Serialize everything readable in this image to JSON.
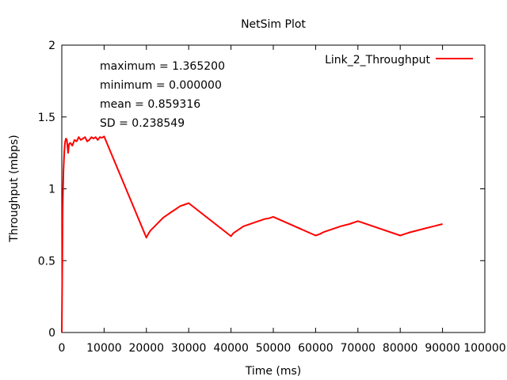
{
  "chart_data": {
    "type": "line",
    "title": "NetSim Plot",
    "xlabel": "Time (ms)",
    "ylabel": "Throughput (mbps)",
    "xlim": [
      0,
      100000
    ],
    "ylim": [
      0,
      2
    ],
    "x_ticks": [
      0,
      10000,
      20000,
      30000,
      40000,
      50000,
      60000,
      70000,
      80000,
      90000,
      100000
    ],
    "x_tick_labels": [
      "0",
      "10000",
      "20000",
      "30000",
      "40000",
      "50000",
      "60000",
      "70000",
      "80000",
      "90000",
      "100000"
    ],
    "y_ticks": [
      0,
      0.5,
      1,
      1.5,
      2
    ],
    "y_tick_labels": [
      "0",
      "0.5",
      "1",
      "1.5",
      "2"
    ],
    "grid": false,
    "legend_position": "top-right",
    "annotations": [
      "maximum = 1.365200",
      "minimum = 0.000000",
      "mean = 0.859316",
      "SD = 0.238549"
    ],
    "series": [
      {
        "name": "Link_2_Throughput",
        "color": "#ff0000",
        "x": [
          0,
          100,
          200,
          300,
          400,
          500,
          600,
          700,
          800,
          1000,
          1200,
          1500,
          1700,
          2000,
          2500,
          3000,
          3500,
          4000,
          4500,
          5000,
          5500,
          6000,
          6500,
          7000,
          7500,
          8000,
          8500,
          9000,
          9500,
          10000,
          20000,
          20500,
          21000,
          22000,
          23000,
          24000,
          25000,
          26000,
          27000,
          28000,
          29000,
          30000,
          40000,
          40500,
          41000,
          42000,
          43000,
          44000,
          45000,
          46000,
          47000,
          48000,
          49000,
          50000,
          60000,
          61000,
          62000,
          64000,
          66000,
          68000,
          70000,
          80000,
          81000,
          82000,
          84000,
          86000,
          88000,
          90000
        ],
        "values": [
          0.0,
          0.35,
          0.85,
          1.0,
          1.12,
          1.2,
          1.26,
          1.3,
          1.33,
          1.35,
          1.34,
          1.25,
          1.31,
          1.32,
          1.3,
          1.34,
          1.33,
          1.36,
          1.34,
          1.35,
          1.36,
          1.33,
          1.34,
          1.36,
          1.35,
          1.36,
          1.34,
          1.36,
          1.355,
          1.365,
          0.66,
          0.69,
          0.71,
          0.74,
          0.77,
          0.8,
          0.82,
          0.84,
          0.86,
          0.88,
          0.89,
          0.9,
          0.67,
          0.69,
          0.7,
          0.72,
          0.74,
          0.75,
          0.76,
          0.77,
          0.78,
          0.79,
          0.795,
          0.805,
          0.675,
          0.685,
          0.7,
          0.72,
          0.74,
          0.755,
          0.775,
          0.675,
          0.685,
          0.695,
          0.71,
          0.725,
          0.74,
          0.755
        ]
      }
    ]
  }
}
